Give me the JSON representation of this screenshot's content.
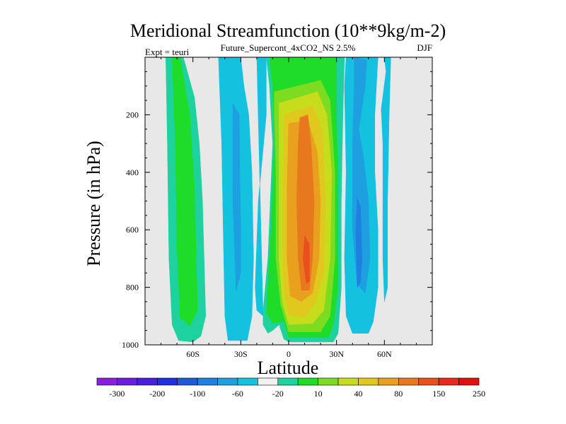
{
  "chart_data": {
    "type": "heatmap",
    "title": "Meridional Streamfunction (10**9kg/m-2)",
    "subtitle": "Future_Supercont_4xCO2_NS 2.5%",
    "left_label": "Expt = teuri",
    "right_label": "DJF",
    "xlabel": "Latitude",
    "ylabel": "Pressure (in hPa)",
    "xlim": [
      -90,
      90
    ],
    "ylim": [
      1000,
      0
    ],
    "x_ticks": [
      {
        "value": -60,
        "label": "60S"
      },
      {
        "value": -30,
        "label": "30S"
      },
      {
        "value": 0,
        "label": "0"
      },
      {
        "value": 30,
        "label": "30N"
      },
      {
        "value": 60,
        "label": "60N"
      }
    ],
    "y_ticks": [
      {
        "value": 200,
        "label": "200"
      },
      {
        "value": 400,
        "label": "400"
      },
      {
        "value": 600,
        "label": "600"
      },
      {
        "value": 800,
        "label": "800"
      },
      {
        "value": 1000,
        "label": "1000"
      }
    ],
    "colorbar": {
      "colors": [
        "#8a1ee0",
        "#6a1ee0",
        "#4a1ee0",
        "#2030e0",
        "#1e5ad8",
        "#1e80e0",
        "#1ea0e0",
        "#14c2e0",
        "#f0f0f0",
        "#1ed2a0",
        "#1edc28",
        "#7cdc20",
        "#c8dc1e",
        "#e0c81e",
        "#e8a01e",
        "#e8781e",
        "#e8501e",
        "#e8281e",
        "#e01010"
      ],
      "labels": [
        {
          "text": "-300",
          "boundary": 1
        },
        {
          "text": "-200",
          "boundary": 3
        },
        {
          "text": "-100",
          "boundary": 5
        },
        {
          "text": "-60",
          "boundary": 7
        },
        {
          "text": "-20",
          "boundary": 9
        },
        {
          "text": "10",
          "boundary": 11
        },
        {
          "text": "40",
          "boundary": 13
        },
        {
          "text": "80",
          "boundary": 15
        },
        {
          "text": "150",
          "boundary": 17
        },
        {
          "text": "250",
          "boundary": 19
        }
      ]
    },
    "fields": [
      {
        "name": "sh-polar-positive",
        "color": "#1ed2a0",
        "polygon": [
          [
            -77,
            0
          ],
          [
            -66,
            0
          ],
          [
            -59,
            140
          ],
          [
            -56,
            300
          ],
          [
            -54,
            500
          ],
          [
            -53,
            700
          ],
          [
            -52,
            900
          ],
          [
            -55,
            970
          ],
          [
            -60,
            990
          ],
          [
            -69,
            985
          ],
          [
            -73,
            930
          ],
          [
            -75,
            700
          ],
          [
            -76,
            300
          ]
        ]
      },
      {
        "name": "sh-polar-positive",
        "color": "#1edc28",
        "polygon": [
          [
            -73,
            0
          ],
          [
            -68,
            0
          ],
          [
            -62,
            200
          ],
          [
            -59,
            450
          ],
          [
            -58,
            700
          ],
          [
            -57,
            880
          ],
          [
            -62,
            935
          ],
          [
            -68,
            905
          ],
          [
            -70,
            650
          ],
          [
            -71,
            300
          ]
        ]
      },
      {
        "name": "sh-negative",
        "color": "#14c2e0",
        "polygon": [
          [
            -44,
            0
          ],
          [
            -30,
            0
          ],
          [
            -28,
            100
          ],
          [
            -25,
            200
          ],
          [
            -23,
            400
          ],
          [
            -22,
            700
          ],
          [
            -23,
            900
          ],
          [
            -26,
            985
          ],
          [
            -38,
            985
          ],
          [
            -40,
            900
          ],
          [
            -41,
            600
          ],
          [
            -42,
            300
          ]
        ]
      },
      {
        "name": "sh-negative",
        "color": "#1ea0e0",
        "polygon": [
          [
            -35,
            160
          ],
          [
            -31,
            200
          ],
          [
            -30,
            600
          ],
          [
            -30,
            750
          ],
          [
            -33,
            815
          ],
          [
            -35,
            500
          ]
        ]
      },
      {
        "name": "tropical-cell",
        "color": "#14c2e0",
        "polygon": [
          [
            -20,
            0
          ],
          [
            -14,
            0
          ],
          [
            -14,
            200
          ],
          [
            -19,
            500
          ],
          [
            -21,
            800
          ],
          [
            -20,
            880
          ],
          [
            -16,
            900
          ]
        ]
      },
      {
        "name": "tropical-cell",
        "color": "#1ed2a0",
        "polygon": [
          [
            -14,
            0
          ],
          [
            35,
            0
          ],
          [
            34,
            200
          ],
          [
            33,
            500
          ],
          [
            33,
            800
          ],
          [
            31,
            960
          ],
          [
            28,
            990
          ],
          [
            0,
            990
          ],
          [
            -3,
            980
          ],
          [
            -6,
            930
          ],
          [
            -10,
            950
          ],
          [
            -13,
            960
          ],
          [
            -16,
            930
          ],
          [
            -16,
            880
          ],
          [
            -13,
            700
          ],
          [
            -10,
            300
          ],
          [
            -12,
            100
          ]
        ]
      },
      {
        "name": "tropical-cell",
        "color": "#1edc28",
        "polygon": [
          [
            -12,
            0
          ],
          [
            30,
            0
          ],
          [
            30,
            200
          ],
          [
            31,
            500
          ],
          [
            31,
            800
          ],
          [
            28,
            930
          ],
          [
            25,
            975
          ],
          [
            0,
            975
          ],
          [
            -3,
            920
          ],
          [
            -10,
            925
          ],
          [
            -14,
            890
          ],
          [
            -11,
            600
          ],
          [
            -9,
            300
          ],
          [
            -10,
            100
          ]
        ]
      },
      {
        "name": "tropical-cell",
        "color": "#7cdc20",
        "polygon": [
          [
            -9,
            120
          ],
          [
            20,
            80
          ],
          [
            26,
            150
          ],
          [
            29,
            400
          ],
          [
            29,
            700
          ],
          [
            26,
            900
          ],
          [
            20,
            955
          ],
          [
            0,
            955
          ],
          [
            -5,
            860
          ],
          [
            -8,
            700
          ],
          [
            -8,
            400
          ],
          [
            -9,
            200
          ]
        ]
      },
      {
        "name": "tropical-cell",
        "color": "#c8dc1e",
        "polygon": [
          [
            -6,
            160
          ],
          [
            18,
            120
          ],
          [
            24,
            200
          ],
          [
            27,
            400
          ],
          [
            26,
            700
          ],
          [
            22,
            880
          ],
          [
            15,
            925
          ],
          [
            0,
            930
          ],
          [
            -4,
            850
          ],
          [
            -6,
            700
          ],
          [
            -6,
            300
          ]
        ]
      },
      {
        "name": "tropical-cell",
        "color": "#e0c81e",
        "polygon": [
          [
            -3,
            200
          ],
          [
            15,
            170
          ],
          [
            21,
            250
          ],
          [
            23,
            500
          ],
          [
            22,
            750
          ],
          [
            17,
            850
          ],
          [
            10,
            905
          ],
          [
            0,
            895
          ],
          [
            -3,
            800
          ],
          [
            -4,
            600
          ],
          [
            -3,
            350
          ]
        ]
      },
      {
        "name": "tropical-cell",
        "color": "#e8a01e",
        "polygon": [
          [
            0,
            230
          ],
          [
            12,
            220
          ],
          [
            18,
            330
          ],
          [
            20,
            500
          ],
          [
            19,
            700
          ],
          [
            15,
            820
          ],
          [
            8,
            850
          ],
          [
            1,
            830
          ],
          [
            -1,
            700
          ],
          [
            -1,
            450
          ]
        ]
      },
      {
        "name": "tropical-cell",
        "color": "#e8781e",
        "polygon": [
          [
            7,
            210
          ],
          [
            12,
            200
          ],
          [
            14,
            300
          ],
          [
            16,
            500
          ],
          [
            15,
            700
          ],
          [
            13,
            810
          ],
          [
            8,
            810
          ],
          [
            6,
            700
          ],
          [
            5,
            500
          ],
          [
            6,
            300
          ]
        ]
      },
      {
        "name": "tropical-cell",
        "color": "#e8501e",
        "polygon": [
          [
            10,
            620
          ],
          [
            13,
            650
          ],
          [
            13,
            780
          ],
          [
            11,
            785
          ],
          [
            9,
            700
          ]
        ]
      },
      {
        "name": "nh-negative",
        "color": "#14c2e0",
        "polygon": [
          [
            36,
            0
          ],
          [
            56,
            0
          ],
          [
            54,
            200
          ],
          [
            54,
            400
          ],
          [
            56,
            600
          ],
          [
            56,
            800
          ],
          [
            53,
            920
          ],
          [
            50,
            960
          ],
          [
            40,
            960
          ],
          [
            36,
            900
          ],
          [
            35,
            700
          ],
          [
            36,
            400
          ],
          [
            35,
            100
          ]
        ]
      },
      {
        "name": "nh-negative",
        "color": "#1ea0e0",
        "polygon": [
          [
            41,
            0
          ],
          [
            49,
            10
          ],
          [
            48,
            100
          ],
          [
            44,
            250
          ],
          [
            47,
            350
          ],
          [
            50,
            500
          ],
          [
            51,
            700
          ],
          [
            48,
            820
          ],
          [
            43,
            790
          ],
          [
            40,
            600
          ],
          [
            40,
            300
          ],
          [
            41,
            100
          ]
        ]
      },
      {
        "name": "nh-negative",
        "color": "#1e80e0",
        "polygon": [
          [
            43,
            490
          ],
          [
            45,
            520
          ],
          [
            46,
            700
          ],
          [
            45,
            780
          ],
          [
            43,
            800
          ],
          [
            42,
            600
          ]
        ]
      },
      {
        "name": "nh-high-lat",
        "color": "#14c2e0",
        "polygon": [
          [
            60,
            0
          ],
          [
            64,
            0
          ],
          [
            63,
            200
          ],
          [
            62,
            500
          ],
          [
            62,
            800
          ],
          [
            60,
            850
          ],
          [
            59,
            700
          ],
          [
            59,
            300
          ],
          [
            58,
            180
          ],
          [
            61,
            50
          ]
        ]
      }
    ]
  }
}
